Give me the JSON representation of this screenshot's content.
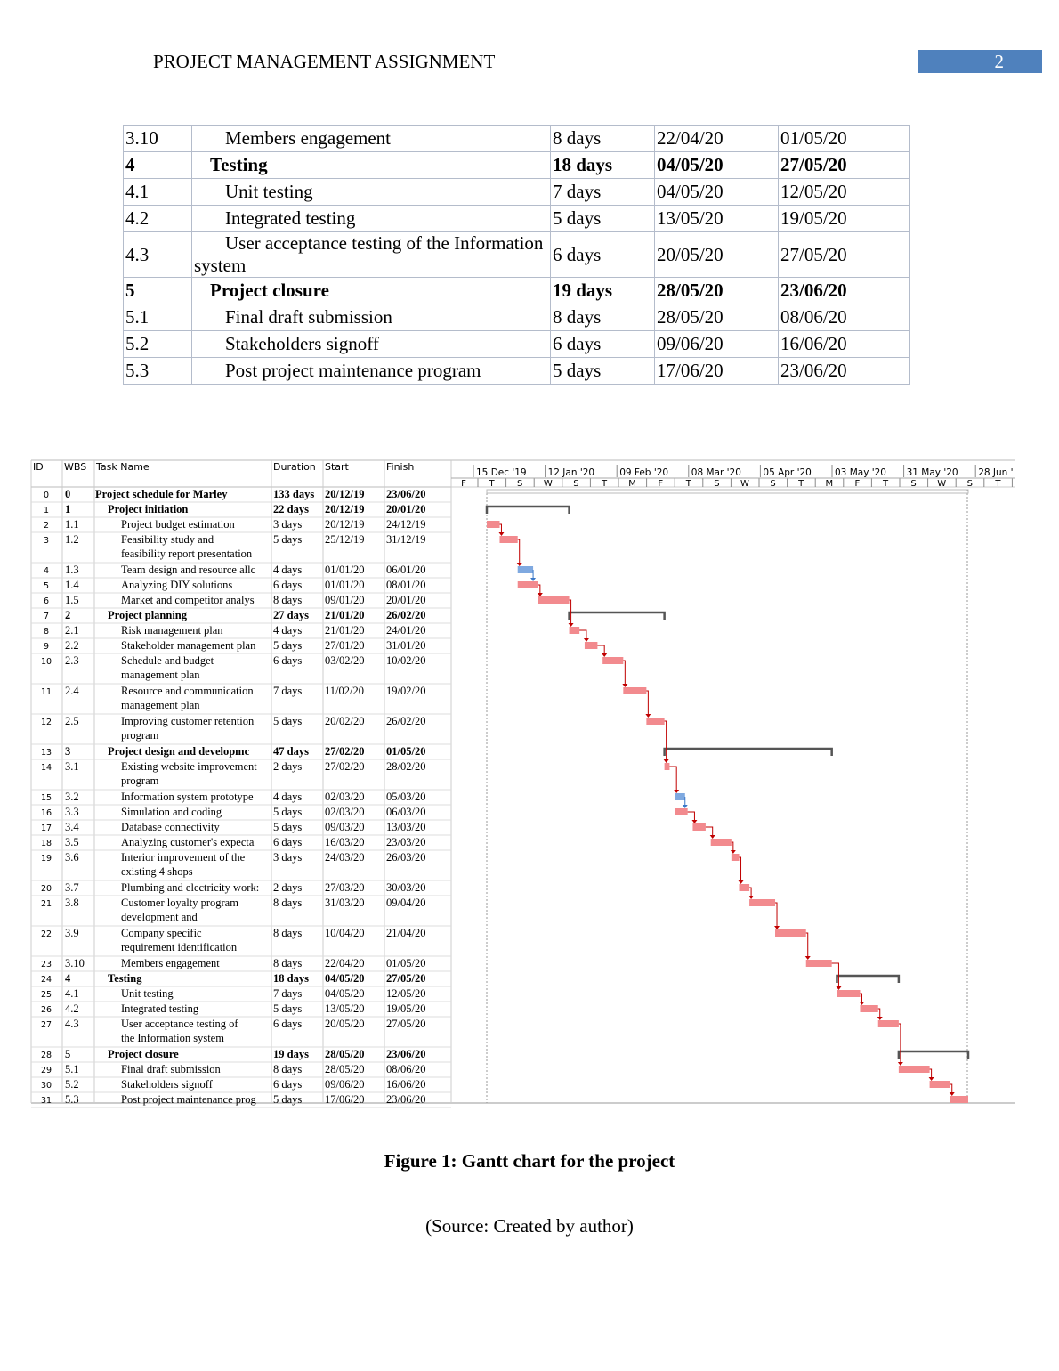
{
  "header": {
    "title": "PROJECT MANAGEMENT ASSIGNMENT",
    "page": "2"
  },
  "table": {
    "rows": [
      {
        "cells": [
          "3.10",
          "Members engagement",
          "8 days",
          "22/04/20",
          "01/05/20"
        ]
      },
      {
        "cells": [
          "4",
          "Testing",
          "18 days",
          "04/05/20",
          "27/05/20"
        ],
        "bold": true
      },
      {
        "cells": [
          "4.1",
          "Unit testing",
          "7 days",
          "04/05/20",
          "12/05/20"
        ]
      },
      {
        "cells": [
          "4.2",
          "Integrated testing",
          "5 days",
          "13/05/20",
          "19/05/20"
        ]
      },
      {
        "cells": [
          "4.3",
          "User acceptance testing of the Information system",
          "6 days",
          "20/05/20",
          "27/05/20"
        ]
      },
      {
        "cells": [
          "5",
          "Project closure",
          "19 days",
          "28/05/20",
          "23/06/20"
        ],
        "bold": true
      },
      {
        "cells": [
          "5.1",
          "Final draft submission",
          "8 days",
          "28/05/20",
          "08/06/20"
        ]
      },
      {
        "cells": [
          "5.2",
          "Stakeholders signoff",
          "6 days",
          "09/06/20",
          "16/06/20"
        ]
      },
      {
        "cells": [
          "5.3",
          "Post project maintenance program",
          "5 days",
          "17/06/20",
          "23/06/20"
        ]
      }
    ]
  },
  "gantt": {
    "columns": [
      "ID",
      "WBS",
      "Task Name",
      "Duration",
      "Start",
      "Finish"
    ],
    "timescale_top": [
      "15 Dec '19",
      "12 Jan '20",
      "09 Feb '20",
      "08 Mar '20",
      "05 Apr '20",
      "03 May '20",
      "31 May '20",
      "28 Jun '"
    ],
    "timescale_bottom": [
      "F",
      "T",
      "S",
      "W",
      "S",
      "T",
      "M",
      "F",
      "T",
      "S",
      "W",
      "S",
      "T",
      "M",
      "F",
      "T",
      "S",
      "W",
      "S",
      "T"
    ],
    "rows": [
      {
        "id": "0",
        "wbs": "0",
        "name": "Project schedule for Marley",
        "duration": "133 days",
        "start": "20/12/19",
        "finish": "23/06/20",
        "bold": true
      },
      {
        "id": "1",
        "wbs": "1",
        "name": "Project initiation",
        "duration": "22 days",
        "start": "20/12/19",
        "finish": "20/01/20",
        "bold": true
      },
      {
        "id": "2",
        "wbs": "1.1",
        "name": "Project budget estimation",
        "duration": "3 days",
        "start": "20/12/19",
        "finish": "24/12/19"
      },
      {
        "id": "3",
        "wbs": "1.2",
        "name": "Feasibility study and\nfeasibility report presentation",
        "duration": "5 days",
        "start": "25/12/19",
        "finish": "31/12/19"
      },
      {
        "id": "4",
        "wbs": "1.3",
        "name": "Team design and resource allc",
        "duration": "4 days",
        "start": "01/01/20",
        "finish": "06/01/20",
        "color": "#7fa9e0"
      },
      {
        "id": "5",
        "wbs": "1.4",
        "name": "Analyzing DIY solutions",
        "duration": "6 days",
        "start": "01/01/20",
        "finish": "08/01/20"
      },
      {
        "id": "6",
        "wbs": "1.5",
        "name": "Market and competitor analys",
        "duration": "8 days",
        "start": "09/01/20",
        "finish": "20/01/20"
      },
      {
        "id": "7",
        "wbs": "2",
        "name": "Project planning",
        "duration": "27 days",
        "start": "21/01/20",
        "finish": "26/02/20",
        "bold": true
      },
      {
        "id": "8",
        "wbs": "2.1",
        "name": "Risk management plan",
        "duration": "4 days",
        "start": "21/01/20",
        "finish": "24/01/20"
      },
      {
        "id": "9",
        "wbs": "2.2",
        "name": "Stakeholder management plan",
        "duration": "5 days",
        "start": "27/01/20",
        "finish": "31/01/20"
      },
      {
        "id": "10",
        "wbs": "2.3",
        "name": "Schedule and budget\nmanagement plan",
        "duration": "6 days",
        "start": "03/02/20",
        "finish": "10/02/20"
      },
      {
        "id": "11",
        "wbs": "2.4",
        "name": "Resource and communication\nmanagement plan",
        "duration": "7 days",
        "start": "11/02/20",
        "finish": "19/02/20"
      },
      {
        "id": "12",
        "wbs": "2.5",
        "name": "Improving customer retention\nprogram",
        "duration": "5 days",
        "start": "20/02/20",
        "finish": "26/02/20"
      },
      {
        "id": "13",
        "wbs": "3",
        "name": "Project design and developmc",
        "duration": "47 days",
        "start": "27/02/20",
        "finish": "01/05/20",
        "bold": true
      },
      {
        "id": "14",
        "wbs": "3.1",
        "name": "Existing website improvement\nprogram",
        "duration": "2 days",
        "start": "27/02/20",
        "finish": "28/02/20"
      },
      {
        "id": "15",
        "wbs": "3.2",
        "name": "Information system prototype",
        "duration": "4 days",
        "start": "02/03/20",
        "finish": "05/03/20",
        "color": "#7fa9e0"
      },
      {
        "id": "16",
        "wbs": "3.3",
        "name": "Simulation and coding",
        "duration": "5 days",
        "start": "02/03/20",
        "finish": "06/03/20"
      },
      {
        "id": "17",
        "wbs": "3.4",
        "name": "Database connectivity",
        "duration": "5 days",
        "start": "09/03/20",
        "finish": "13/03/20"
      },
      {
        "id": "18",
        "wbs": "3.5",
        "name": "Analyzing customer's expecta",
        "duration": "6 days",
        "start": "16/03/20",
        "finish": "23/03/20"
      },
      {
        "id": "19",
        "wbs": "3.6",
        "name": "Interior improvement of the\nexisting 4 shops",
        "duration": "3 days",
        "start": "24/03/20",
        "finish": "26/03/20"
      },
      {
        "id": "20",
        "wbs": "3.7",
        "name": "Plumbing and electricity work:",
        "duration": "2 days",
        "start": "27/03/20",
        "finish": "30/03/20"
      },
      {
        "id": "21",
        "wbs": "3.8",
        "name": "Customer loyalty program\ndevelopment and",
        "duration": "8 days",
        "start": "31/03/20",
        "finish": "09/04/20"
      },
      {
        "id": "22",
        "wbs": "3.9",
        "name": "Company specific\nrequirement identification",
        "duration": "8 days",
        "start": "10/04/20",
        "finish": "21/04/20"
      },
      {
        "id": "23",
        "wbs": "3.10",
        "name": "Members engagement",
        "duration": "8 days",
        "start": "22/04/20",
        "finish": "01/05/20"
      },
      {
        "id": "24",
        "wbs": "4",
        "name": "Testing",
        "duration": "18 days",
        "start": "04/05/20",
        "finish": "27/05/20",
        "bold": true
      },
      {
        "id": "25",
        "wbs": "4.1",
        "name": "Unit testing",
        "duration": "7 days",
        "start": "04/05/20",
        "finish": "12/05/20"
      },
      {
        "id": "26",
        "wbs": "4.2",
        "name": "Integrated testing",
        "duration": "5 days",
        "start": "13/05/20",
        "finish": "19/05/20"
      },
      {
        "id": "27",
        "wbs": "4.3",
        "name": "User acceptance testing of\nthe Information system",
        "duration": "6 days",
        "start": "20/05/20",
        "finish": "27/05/20"
      },
      {
        "id": "28",
        "wbs": "5",
        "name": "Project closure",
        "duration": "19 days",
        "start": "28/05/20",
        "finish": "23/06/20",
        "bold": true
      },
      {
        "id": "29",
        "wbs": "5.1",
        "name": "Final draft submission",
        "duration": "8 days",
        "start": "28/05/20",
        "finish": "08/06/20"
      },
      {
        "id": "30",
        "wbs": "5.2",
        "name": "Stakeholders signoff",
        "duration": "6 days",
        "start": "09/06/20",
        "finish": "16/06/20"
      },
      {
        "id": "31",
        "wbs": "5.3",
        "name": "Post project maintenance prog",
        "duration": "5 days",
        "start": "17/06/20",
        "finish": "23/06/20"
      }
    ]
  },
  "caption": {
    "title": "Figure 1: Gantt chart for the project",
    "source": "(Source: Created by author)"
  }
}
